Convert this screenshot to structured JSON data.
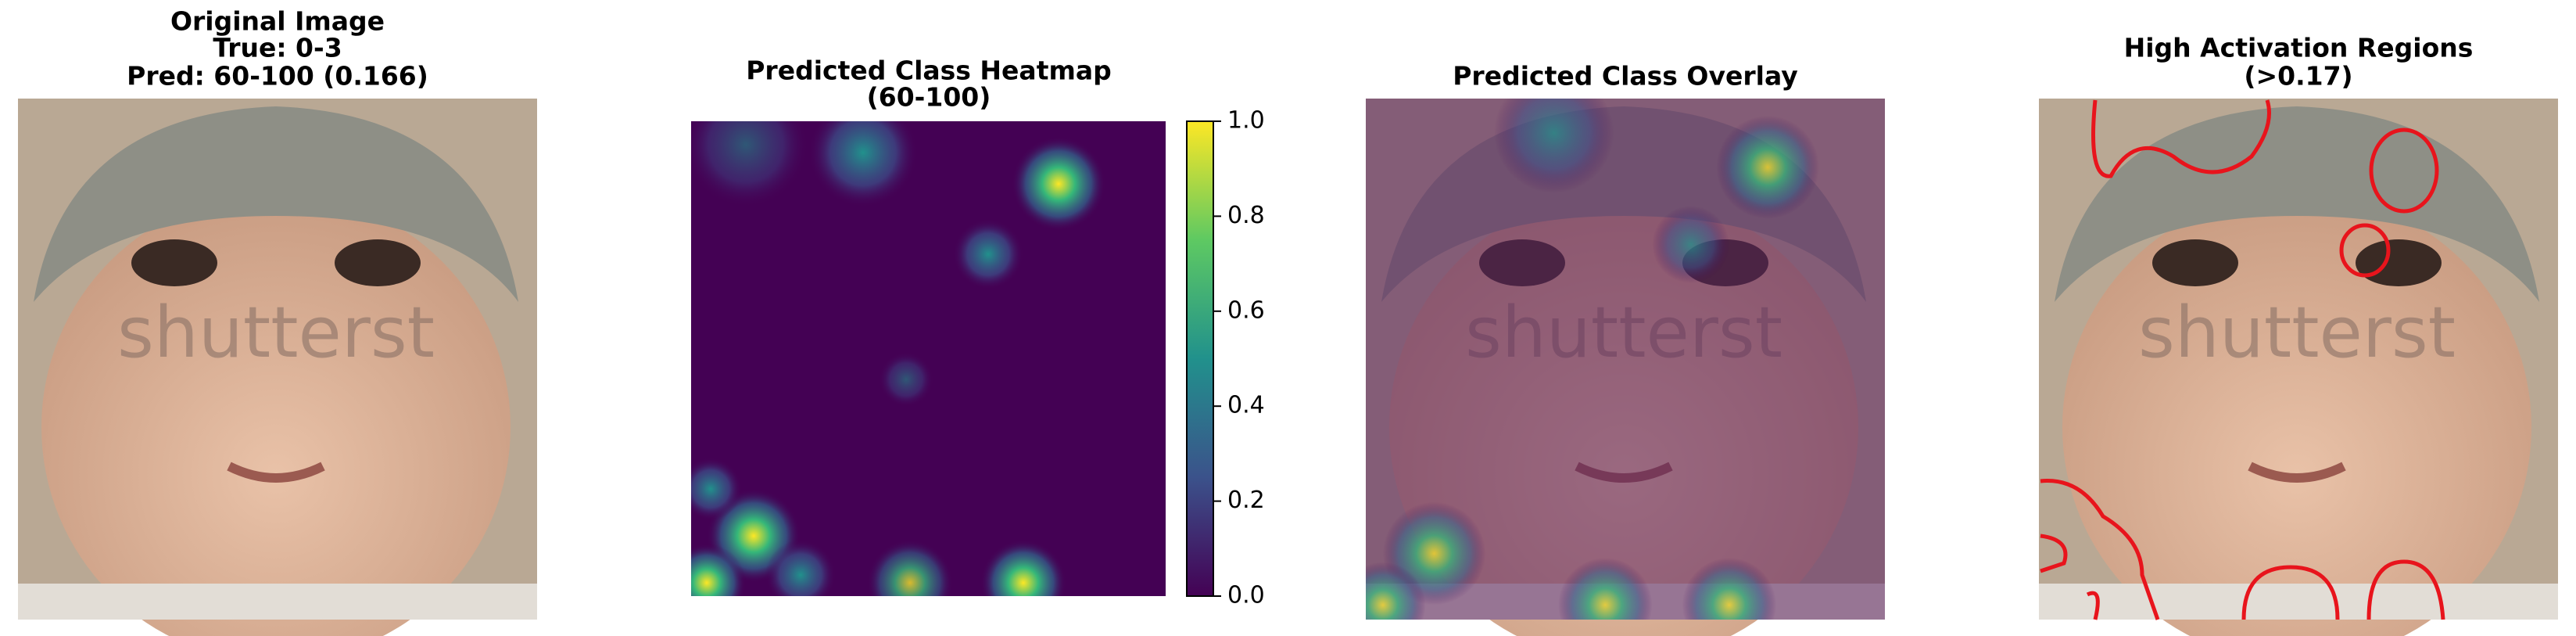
{
  "panels": [
    {
      "title": [
        "Original Image",
        "True: 0-3",
        "Pred: 60-100 (0.166)"
      ]
    },
    {
      "title": [
        "Predicted Class Heatmap",
        "(60-100)"
      ],
      "colorbar": {
        "lim": [
          0,
          1
        ],
        "ticks": [
          {
            "value": 0,
            "label": "0.0"
          },
          {
            "value": 0.2,
            "label": "0.2"
          },
          {
            "value": 0.4,
            "label": "0.4"
          },
          {
            "value": 0.6,
            "label": "0.6"
          },
          {
            "value": 0.8,
            "label": "0.8"
          },
          {
            "value": 1,
            "label": "1.0"
          }
        ]
      }
    },
    {
      "title": [
        "Predicted Class Overlay"
      ]
    },
    {
      "title": [
        "High Activation Regions",
        "(>0.17)"
      ]
    }
  ]
}
